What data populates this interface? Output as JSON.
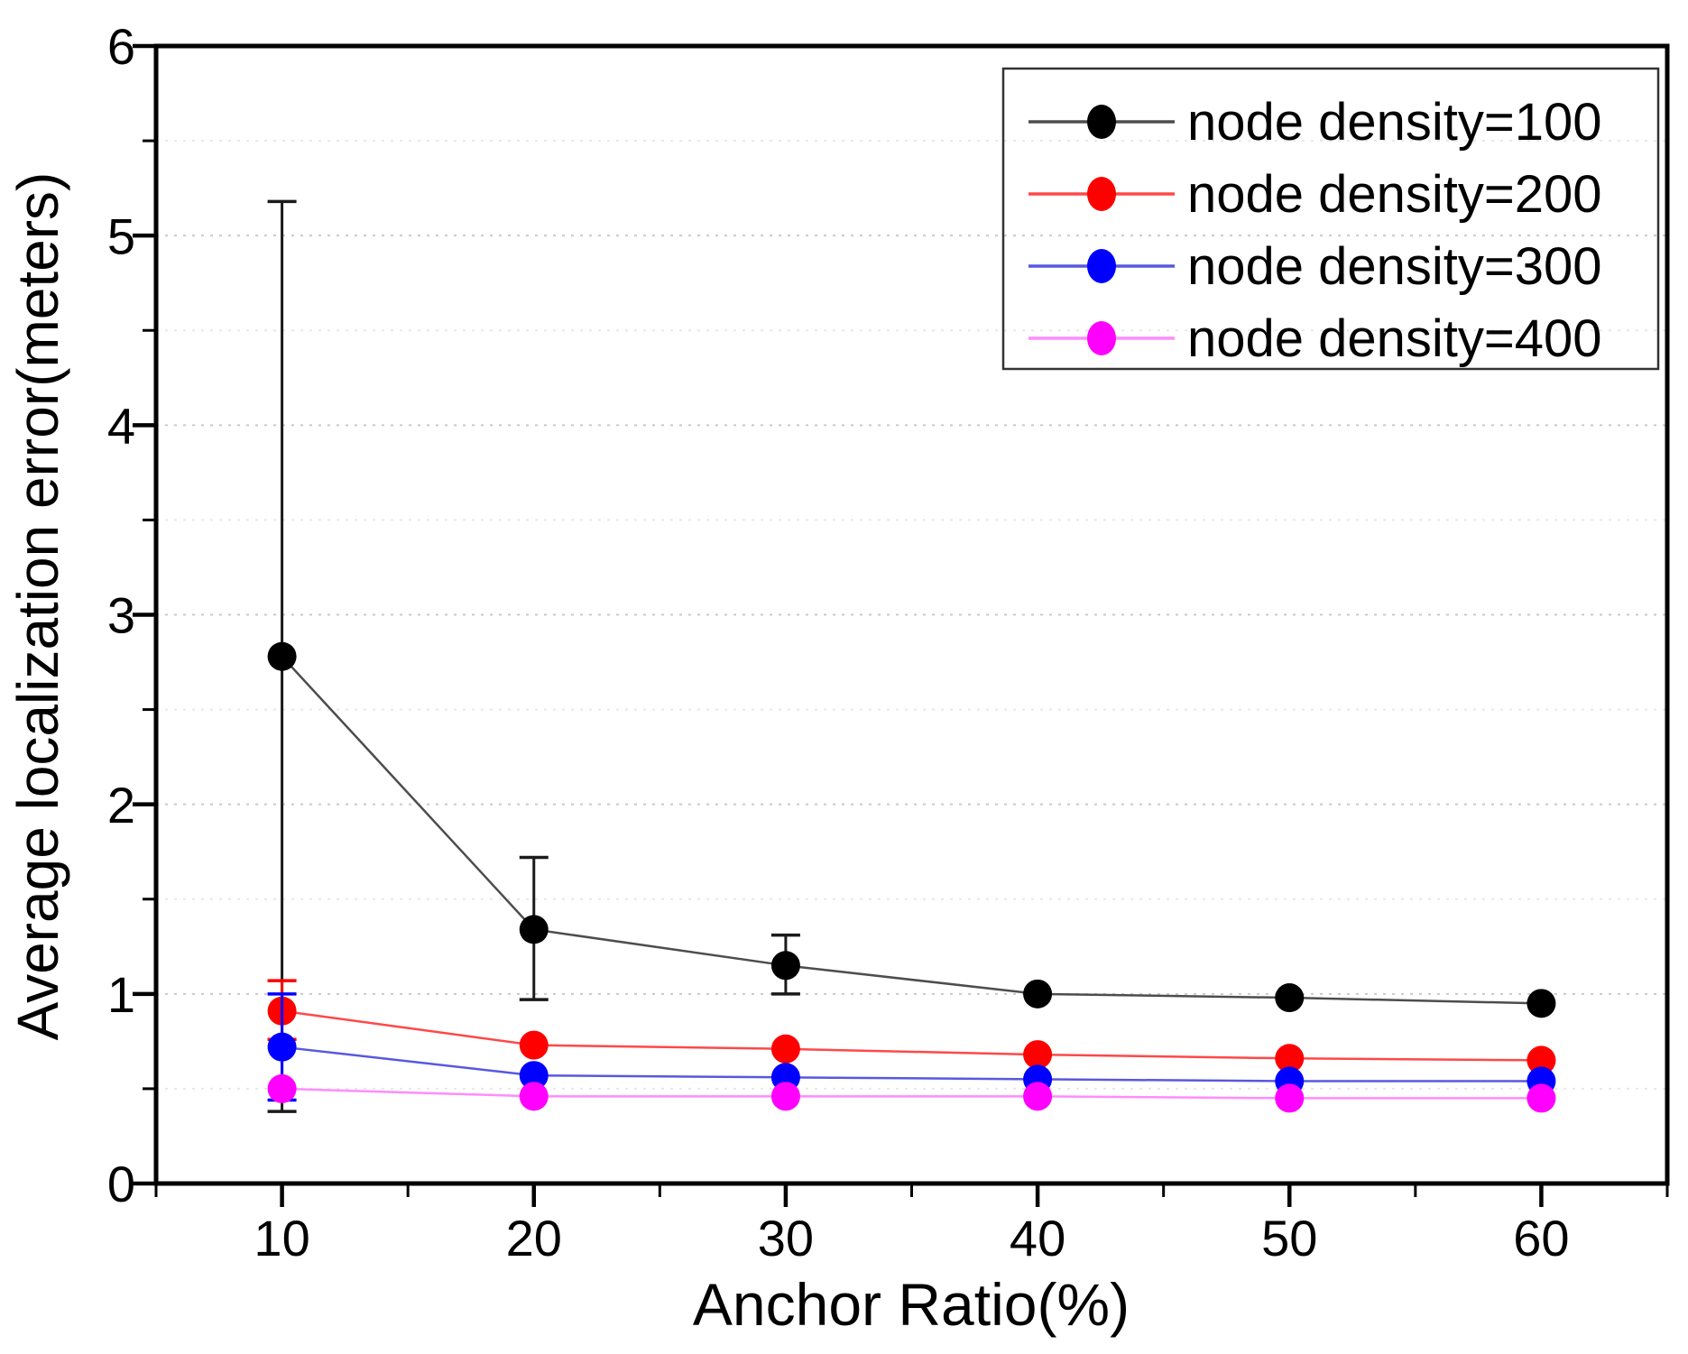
{
  "figure": {
    "background": "#ffffff"
  },
  "chart_data": {
    "type": "line",
    "title": "",
    "xlabel": "Anchor Ratio(%)",
    "ylabel": "Average localization error(meters)",
    "xlim": [
      5,
      65
    ],
    "ylim": [
      0,
      6
    ],
    "x_ticks": [
      10,
      20,
      30,
      40,
      50,
      60
    ],
    "y_ticks": [
      0,
      1,
      2,
      3,
      4,
      5,
      6
    ],
    "x_minor_ticks": [
      5,
      15,
      25,
      35,
      45,
      55,
      65
    ],
    "y_minor_step": 0.5,
    "grid": "horizontal dotted gridlines at major and minor y ticks",
    "legend_position": "top-right",
    "legend_border_color": "#333333",
    "axis_color": "#000000",
    "major_grid_color": "#c9c9c9",
    "minor_grid_color": "#e8e8e8",
    "x": [
      10,
      20,
      30,
      40,
      50,
      60
    ],
    "series": [
      {
        "name": "node density=100",
        "color": "#000000",
        "line_color": "#4d4d4d",
        "values": [
          2.78,
          1.34,
          1.15,
          1.0,
          0.98,
          0.95
        ],
        "err_up": [
          2.4,
          0.38,
          0.16,
          0,
          0,
          0
        ],
        "err_down": [
          2.4,
          0.37,
          0.15,
          0,
          0,
          0
        ]
      },
      {
        "name": "node density=200",
        "color": "#ff0000",
        "line_color": "#ff4848",
        "values": [
          0.91,
          0.73,
          0.71,
          0.68,
          0.66,
          0.65
        ],
        "err_up": [
          0.16,
          0,
          0,
          0,
          0,
          0
        ],
        "err_down": [
          0.15,
          0,
          0,
          0,
          0,
          0
        ]
      },
      {
        "name": "node density=300",
        "color": "#0000ff",
        "line_color": "#5858e0",
        "values": [
          0.72,
          0.57,
          0.56,
          0.55,
          0.54,
          0.54
        ],
        "err_up": [
          0.28,
          0,
          0,
          0,
          0,
          0
        ],
        "err_down": [
          0.28,
          0,
          0,
          0,
          0,
          0
        ]
      },
      {
        "name": "node density=400",
        "color": "#ff00ff",
        "line_color": "#ff8cff",
        "values": [
          0.5,
          0.46,
          0.46,
          0.46,
          0.45,
          0.45
        ],
        "err_up": [
          0,
          0,
          0,
          0,
          0,
          0
        ],
        "err_down": [
          0,
          0,
          0,
          0,
          0,
          0
        ]
      }
    ]
  }
}
